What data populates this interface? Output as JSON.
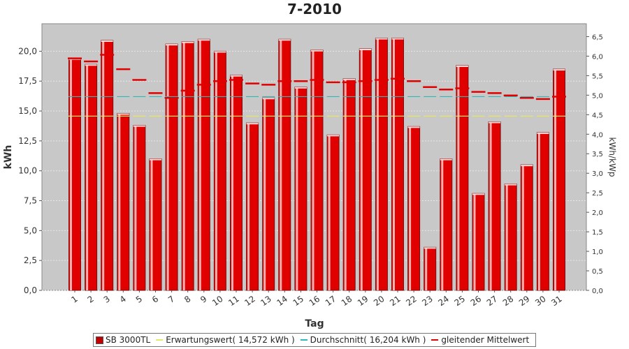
{
  "chart_data": {
    "type": "bar",
    "title": "7-2010",
    "xlabel": "Tag",
    "ylabel": "kWh",
    "ylabel_right": "kWh/kWp",
    "ylim": [
      0,
      22.3
    ],
    "ylim_right": [
      0,
      6.83
    ],
    "yticks": [
      "0,0",
      "2,5",
      "5,0",
      "7,5",
      "10,0",
      "12,5",
      "15,0",
      "17,5",
      "20,0"
    ],
    "yticks_right": [
      "0,0",
      "0,5",
      "1,0",
      "1,5",
      "2,0",
      "2,5",
      "3,0",
      "3,5",
      "4,0",
      "4,5",
      "5,0",
      "5,5",
      "6,0",
      "6,5"
    ],
    "categories": [
      "1",
      "2",
      "3",
      "4",
      "5",
      "6",
      "7",
      "8",
      "9",
      "10",
      "11",
      "12",
      "13",
      "14",
      "15",
      "16",
      "17",
      "18",
      "19",
      "20",
      "21",
      "22",
      "23",
      "24",
      "25",
      "26",
      "27",
      "28",
      "29",
      "30",
      "31"
    ],
    "series": [
      {
        "name": "SB 3000TL",
        "kind": "bar",
        "color": "#e00000",
        "values": [
          19.4,
          18.9,
          20.9,
          14.8,
          13.8,
          11.0,
          20.6,
          20.8,
          21.0,
          20.0,
          18.0,
          14.0,
          16.1,
          21.0,
          17.0,
          20.1,
          13.0,
          17.7,
          20.2,
          21.1,
          21.1,
          13.7,
          3.6,
          11.0,
          18.8,
          8.1,
          14.1,
          8.9,
          10.5,
          13.2,
          18.5
        ]
      },
      {
        "name": "Erwartungswert( 14,572 kWh )",
        "kind": "constant",
        "color": "#e8e860",
        "value": 14.572
      },
      {
        "name": "Durchschnitt( 16,204 kWh )",
        "kind": "constant",
        "color": "#30b8b8",
        "value": 16.204
      },
      {
        "name": "gleitender Mittelwert",
        "kind": "dashes",
        "color": "#e00000",
        "values": [
          19.4,
          19.15,
          19.7,
          18.5,
          17.6,
          16.5,
          16.1,
          16.7,
          17.2,
          17.5,
          17.6,
          17.3,
          17.2,
          17.5,
          17.5,
          17.6,
          17.4,
          17.4,
          17.5,
          17.6,
          17.7,
          17.5,
          17.0,
          16.8,
          16.9,
          16.6,
          16.5,
          16.3,
          16.1,
          16.0,
          16.2
        ]
      }
    ]
  }
}
